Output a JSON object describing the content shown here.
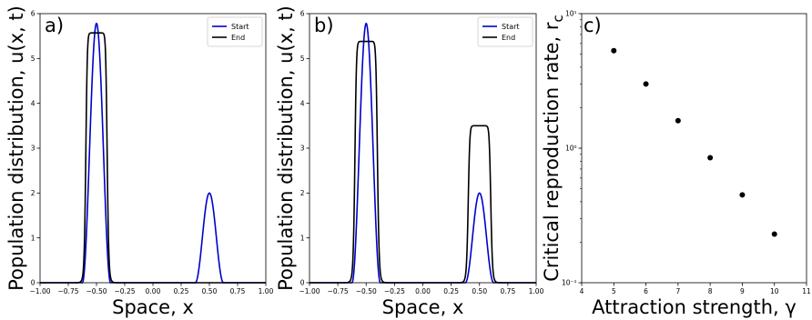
{
  "chart_data": [
    {
      "type": "line",
      "panel_label": "a)",
      "xlabel": "Space, x",
      "ylabel": "Population distribution, u(x, t)",
      "xlim": [
        -1.0,
        1.0
      ],
      "ylim": [
        0,
        6
      ],
      "xticks": [
        "−1.00",
        "−0.75",
        "−0.50",
        "−0.25",
        "0.00",
        "0.25",
        "0.50",
        "0.75",
        "1.00"
      ],
      "yticks": [
        "0",
        "1",
        "2",
        "3",
        "4",
        "5",
        "6"
      ],
      "legend": "top-right",
      "series": [
        {
          "name": "Start",
          "color": "#0000cc",
          "shape": "bump",
          "bumps": [
            {
              "center": -0.5,
              "height": 5.78,
              "halfwidth": 0.125
            },
            {
              "center": 0.5,
              "height": 2.0,
              "halfwidth": 0.125
            }
          ]
        },
        {
          "name": "End",
          "color": "#000000",
          "shape": "plateau",
          "bumps": [
            {
              "center": -0.5,
              "height": 5.57,
              "halfwidth": 0.095
            }
          ]
        }
      ]
    },
    {
      "type": "line",
      "panel_label": "b)",
      "xlabel": "Space, x",
      "ylabel": "Population distribution, u(x, t)",
      "xlim": [
        -1.0,
        1.0
      ],
      "ylim": [
        0,
        6
      ],
      "xticks": [
        "−1.00",
        "−0.75",
        "−0.50",
        "−0.25",
        "0.00",
        "0.25",
        "0.50",
        "0.75",
        "1.00"
      ],
      "yticks": [
        "0",
        "1",
        "2",
        "3",
        "4",
        "5",
        "6"
      ],
      "legend": "top-right",
      "series": [
        {
          "name": "Start",
          "color": "#0000cc",
          "shape": "bump",
          "bumps": [
            {
              "center": -0.5,
              "height": 5.78,
              "halfwidth": 0.125
            },
            {
              "center": 0.5,
              "height": 2.0,
              "halfwidth": 0.125
            }
          ]
        },
        {
          "name": "End",
          "color": "#000000",
          "shape": "plateau",
          "bumps": [
            {
              "center": -0.5,
              "height": 5.38,
              "halfwidth": 0.1
            },
            {
              "center": 0.5,
              "height": 3.5,
              "halfwidth": 0.1
            }
          ]
        }
      ]
    },
    {
      "type": "scatter",
      "panel_label": "c)",
      "xlabel": "Attraction strength, γ",
      "ylabel": "Critical reproduction rate, r_c",
      "xlim": [
        4,
        11
      ],
      "ylim": [
        0.1,
        10
      ],
      "yscale": "log",
      "xticks": [
        "4",
        "5",
        "6",
        "7",
        "8",
        "9",
        "10",
        "11"
      ],
      "yticks": [
        "10⁻¹",
        "10⁰",
        "10¹"
      ],
      "x": [
        5,
        6,
        7,
        8,
        9,
        10
      ],
      "y": [
        5.3,
        3.0,
        1.6,
        0.85,
        0.45,
        0.23
      ],
      "color": "#000000"
    }
  ]
}
